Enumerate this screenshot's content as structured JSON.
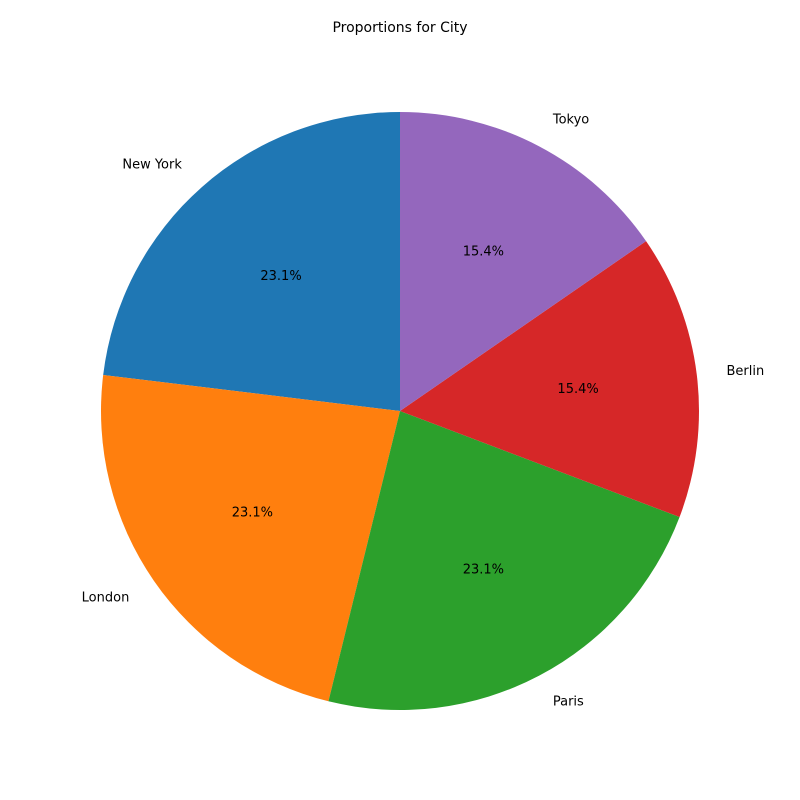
{
  "chart_data": {
    "type": "pie",
    "title": "Proportions for City",
    "categories": [
      "New York",
      "London",
      "Paris",
      "Berlin",
      "Tokyo"
    ],
    "values": [
      3,
      3,
      3,
      2,
      2
    ],
    "percent_labels": [
      "23.1%",
      "23.1%",
      "23.1%",
      "15.4%",
      "15.4%"
    ],
    "colors": [
      "#1f77b4",
      "#ff7f0e",
      "#2ca02c",
      "#d62728",
      "#9467bd"
    ],
    "start_angle_deg": 90,
    "direction": "counterclockwise"
  }
}
